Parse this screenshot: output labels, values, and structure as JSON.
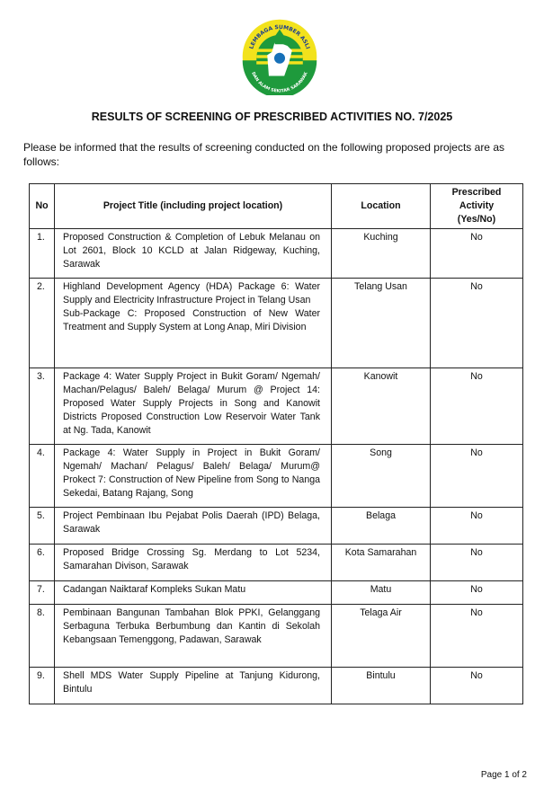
{
  "logo": {
    "top_text": "LEMBAGA SUMBER ASLI",
    "bottom_text": "DAN ALAM SEKITAR SARAWAK"
  },
  "title": "RESULTS OF SCREENING OF PRESCRIBED ACTIVITIES NO. 7/2025",
  "intro": "Please be informed that the results of screening conducted on the following proposed projects are as follows:",
  "table": {
    "headers": {
      "no": "No",
      "title": "Project Title (including project location)",
      "location": "Location",
      "activity": "Prescribed Activity (Yes/No)"
    },
    "rows": [
      {
        "no": "1.",
        "title": "Proposed Construction & Completion of Lebuk Melanau on Lot 2601, Block 10 KCLD at Jalan Ridgeway, Kuching, Sarawak",
        "location": "Kuching",
        "activity": "No"
      },
      {
        "no": "2.",
        "title": "Highland Development Agency (HDA) Package 6: Water Supply and Electricity Infrastructure Project in Telang Usan",
        "title2": "Sub-Package C: Proposed Construction of New Water Treatment and Supply System at Long Anap, Miri Division",
        "location": "Telang Usan",
        "activity": "No"
      },
      {
        "no": "3.",
        "title": "Package 4: Water Supply Project in Bukit Goram/ Ngemah/ Machan/Pelagus/ Baleh/ Belaga/ Murum @ Project 14: Proposed Water Supply Projects in Song and Kanowit Districts Proposed Construction Low Reservoir Water Tank at Ng. Tada, Kanowit",
        "location": "Kanowit",
        "activity": "No"
      },
      {
        "no": "4.",
        "title": "Package 4: Water Supply in Project in Bukit Goram/ Ngemah/ Machan/ Pelagus/ Baleh/ Belaga/ Murum@ Prokect 7: Construction of New Pipeline from Song to Nanga Sekedai, Batang Rajang, Song",
        "location": "Song",
        "activity": "No"
      },
      {
        "no": "5.",
        "title": "Project Pembinaan Ibu Pejabat Polis Daerah (IPD) Belaga, Sarawak",
        "location": "Belaga",
        "activity": "No"
      },
      {
        "no": "6.",
        "title": "Proposed Bridge Crossing Sg. Merdang to Lot 5234, Samarahan Divison, Sarawak",
        "location": "Kota Samarahan",
        "activity": "No"
      },
      {
        "no": "7.",
        "title": "Cadangan Naiktaraf Kompleks Sukan Matu",
        "location": "Matu",
        "activity": "No"
      },
      {
        "no": "8.",
        "title": "Pembinaan Bangunan Tambahan Blok PPKI, Gelanggang Serbaguna Terbuka Berbumbung dan Kantin di Sekolah Kebangsaan Temenggong, Padawan, Sarawak",
        "location": "Telaga Air",
        "activity": "No"
      },
      {
        "no": "9.",
        "title": "Shell MDS Water Supply Pipeline at Tanjung Kidurong, Bintulu",
        "location": "Bintulu",
        "activity": "No"
      }
    ]
  },
  "footer": "Page 1 of 2"
}
